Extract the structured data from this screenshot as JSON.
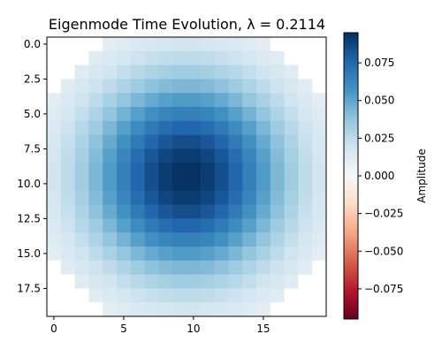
{
  "chart_data": {
    "type": "heatmap",
    "title": "Eigenmode Time Evolution, λ = 0.2114",
    "xlabel": "",
    "ylabel": "",
    "grid_size": [
      20,
      20
    ],
    "x_range": [
      -0.5,
      19.5
    ],
    "y_range": [
      -0.5,
      19.5
    ],
    "y_inverted": true,
    "x_ticks": [
      0,
      5,
      10,
      15
    ],
    "x_tick_labels": [
      "0",
      "5",
      "10",
      "15"
    ],
    "y_ticks": [
      0,
      2.5,
      5,
      7.5,
      10,
      12.5,
      15,
      17.5
    ],
    "y_tick_labels": [
      "0.0",
      "2.5",
      "5.0",
      "7.5",
      "10.0",
      "12.5",
      "15.0",
      "17.5"
    ],
    "peak_amplitude": 0.095,
    "center": [
      9.5,
      9.5
    ],
    "sigma": 5.2,
    "corner_cutoff": 0.009,
    "colormap": "RdBu",
    "colorbar": {
      "label": "Amplitude",
      "vmin": -0.095,
      "vmax": 0.095,
      "ticks": [
        -0.075,
        -0.05,
        -0.025,
        0,
        0.025,
        0.05,
        0.075
      ],
      "tick_labels": [
        "−0.075",
        "−0.050",
        "−0.025",
        "0.000",
        "0.025",
        "0.050",
        "0.075"
      ]
    }
  }
}
